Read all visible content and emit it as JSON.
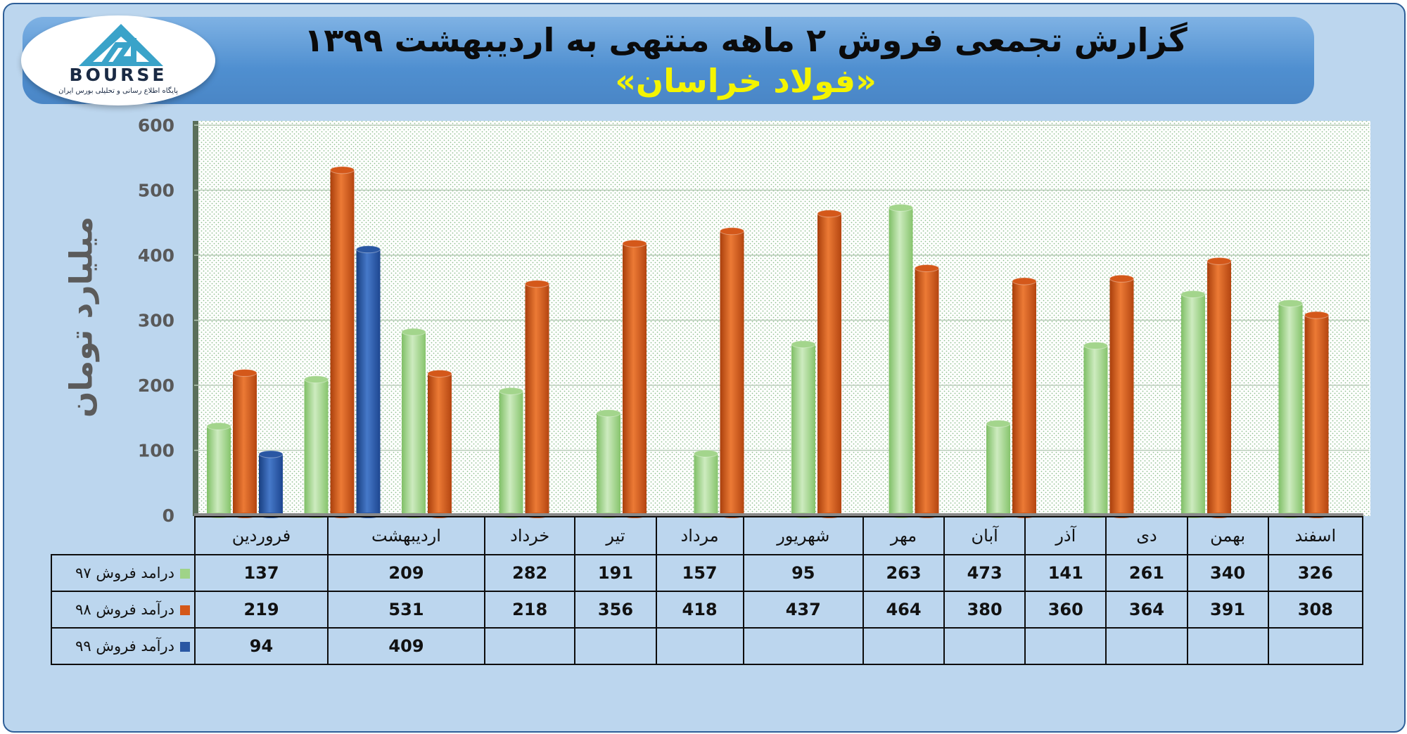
{
  "header": {
    "title": "گزارش تجمعی فروش ۲ ماهه منتهی به اردیبهشت ۱۳۹۹",
    "subtitle": "«فولاد خراسان»"
  },
  "logo": {
    "text": "BOURSE",
    "tagline": "پایگاه اطلاع رسانی و تحلیلی بورس ایران"
  },
  "chart_data": {
    "type": "bar",
    "title": "گزارش تجمعی فروش ۲ ماهه منتهی به اردیبهشت ۱۳۹۹",
    "ylabel": "میلیارد تومان",
    "ylim": [
      0,
      600
    ],
    "yticks": [
      0,
      100,
      200,
      300,
      400,
      500,
      600
    ],
    "grid": true,
    "categories": [
      "فروردین",
      "اردیبهشت",
      "خرداد",
      "تیر",
      "مرداد",
      "شهریور",
      "مهر",
      "آبان",
      "آذر",
      "دی",
      "بهمن",
      "اسفند"
    ],
    "series": [
      {
        "name": "درامد فروش ۹۷",
        "color": "#a3d58c",
        "values": [
          137,
          209,
          282,
          191,
          157,
          95,
          263,
          473,
          141,
          261,
          340,
          326
        ]
      },
      {
        "name": "درآمد فروش ۹۸",
        "color": "#d4581a",
        "values": [
          219,
          531,
          218,
          356,
          418,
          437,
          464,
          380,
          360,
          364,
          391,
          308
        ]
      },
      {
        "name": "درآمد فروش ۹۹",
        "color": "#2a57a3",
        "values": [
          94,
          409,
          null,
          null,
          null,
          null,
          null,
          null,
          null,
          null,
          null,
          null
        ]
      }
    ]
  }
}
